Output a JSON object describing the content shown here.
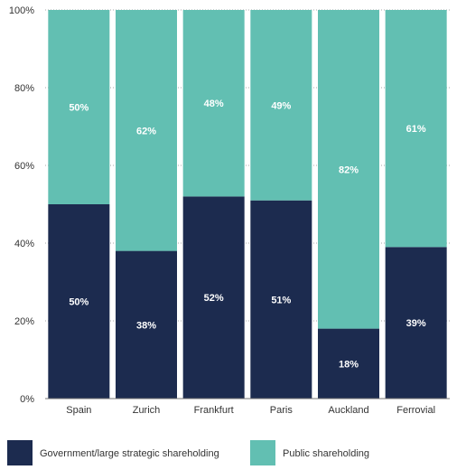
{
  "colors": {
    "government": "#1c2b4f",
    "public": "#62bfb2",
    "gridline": "#aaaaaa",
    "axis": "#777777"
  },
  "chart_data": {
    "type": "bar",
    "stacked": true,
    "categories": [
      "Spain",
      "Zurich",
      "Frankfurt",
      "Paris",
      "Auckland",
      "Ferrovial"
    ],
    "series": [
      {
        "name": "Government/large strategic shareholding",
        "values": [
          50,
          38,
          52,
          51,
          18,
          39
        ],
        "labels": [
          "50%",
          "38%",
          "52%",
          "51%",
          "18%",
          "39%"
        ]
      },
      {
        "name": "Public shareholding",
        "values": [
          50,
          62,
          48,
          49,
          82,
          61
        ],
        "labels": [
          "50%",
          "62%",
          "48%",
          "49%",
          "82%",
          "61%"
        ]
      }
    ],
    "yticks": [
      "0%",
      "20%",
      "40%",
      "60%",
      "80%",
      "100%"
    ],
    "ylim": [
      0,
      100
    ],
    "grid": true,
    "legend": "bottom"
  }
}
